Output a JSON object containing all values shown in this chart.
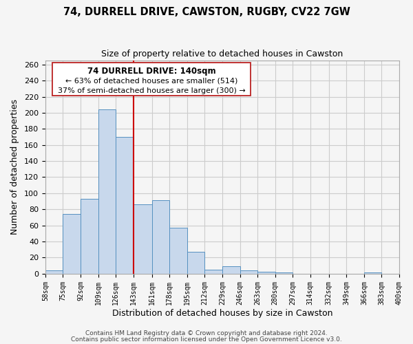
{
  "title": "74, DURRELL DRIVE, CAWSTON, RUGBY, CV22 7GW",
  "subtitle": "Size of property relative to detached houses in Cawston",
  "xlabel": "Distribution of detached houses by size in Cawston",
  "ylabel": "Number of detached properties",
  "bins": [
    58,
    75,
    92,
    109,
    126,
    143,
    161,
    178,
    195,
    212,
    229,
    246,
    263,
    280,
    297,
    314,
    332,
    349,
    366,
    383,
    400
  ],
  "bin_labels": [
    "58sqm",
    "75sqm",
    "92sqm",
    "109sqm",
    "126sqm",
    "143sqm",
    "161sqm",
    "178sqm",
    "195sqm",
    "212sqm",
    "229sqm",
    "246sqm",
    "263sqm",
    "280sqm",
    "297sqm",
    "314sqm",
    "332sqm",
    "349sqm",
    "366sqm",
    "383sqm",
    "400sqm"
  ],
  "counts": [
    4,
    74,
    93,
    204,
    170,
    86,
    91,
    57,
    27,
    5,
    9,
    4,
    2,
    1,
    0,
    0,
    0,
    0,
    1,
    0
  ],
  "bar_color": "#c8d8ec",
  "bar_edge_color": "#5590c0",
  "ref_line_color": "#cc0000",
  "ann_line1": "74 DURRELL DRIVE: 140sqm",
  "ann_line2": "← 63% of detached houses are smaller (514)",
  "ann_line3": "37% of semi-detached houses are larger (300) →",
  "ylim_max": 265,
  "yticks": [
    0,
    20,
    40,
    60,
    80,
    100,
    120,
    140,
    160,
    180,
    200,
    220,
    240,
    260
  ],
  "footer1": "Contains HM Land Registry data © Crown copyright and database right 2024.",
  "footer2": "Contains public sector information licensed under the Open Government Licence v3.0.",
  "bg_color": "#f5f5f5",
  "plot_bg_color": "#f5f5f5",
  "grid_color": "#cccccc"
}
